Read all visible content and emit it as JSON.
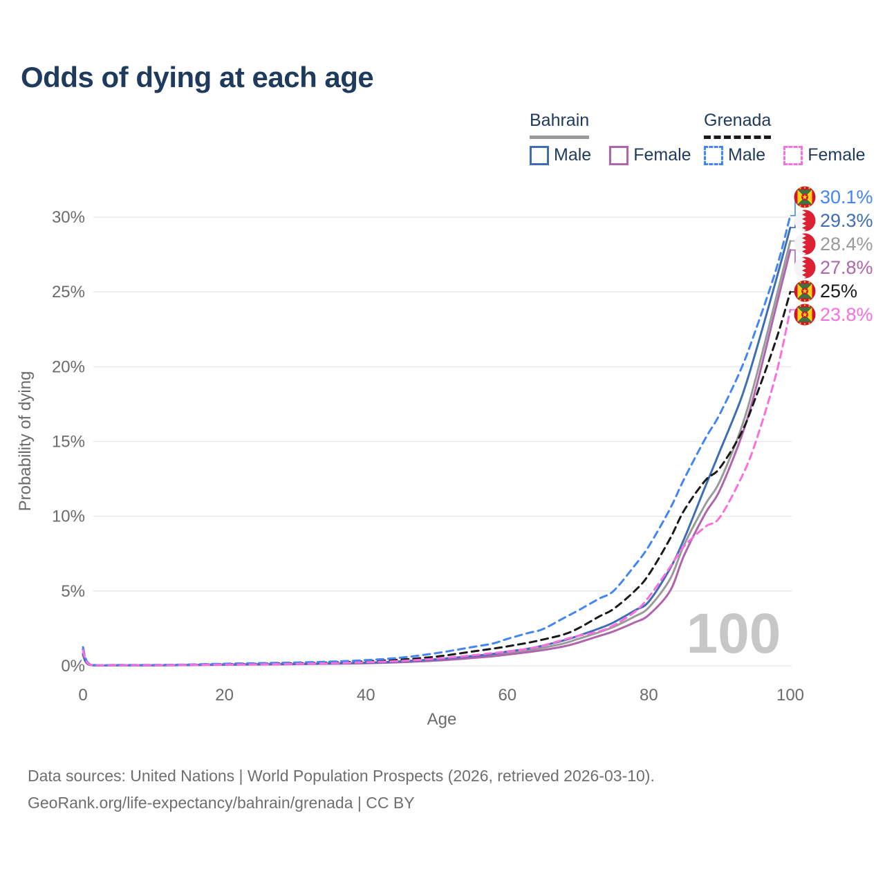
{
  "title": "Odds of dying at each age",
  "legend": {
    "groups": [
      {
        "country": "Bahrain",
        "line_style": "solid",
        "underline_color": "#9a9a9a",
        "items": [
          {
            "label": "Male",
            "color": "#3e6db5"
          },
          {
            "label": "Female",
            "color": "#af64ad"
          }
        ]
      },
      {
        "country": "Grenada",
        "line_style": "dashed",
        "underline_color": "#1a1a1a",
        "items": [
          {
            "label": "Male",
            "color": "#4285f4"
          },
          {
            "label": "Female",
            "color": "#fb6edd"
          }
        ]
      }
    ]
  },
  "chart_data": {
    "type": "line",
    "title": "Odds of dying at each age",
    "xlabel": "Age",
    "ylabel": "Probability of dying",
    "xlim": [
      0,
      100
    ],
    "ylim_pct": [
      0,
      31
    ],
    "grid": true,
    "legend_position": "top-right",
    "watermark": "100",
    "x_ticks": [
      0,
      20,
      40,
      60,
      80,
      100
    ],
    "y_ticks_pct": [
      0,
      5,
      10,
      15,
      20,
      25,
      30
    ],
    "y_tick_labels": [
      "0%",
      "5%",
      "10%",
      "15%",
      "20%",
      "25%",
      "30%"
    ],
    "ages": [
      0,
      1,
      5,
      10,
      15,
      20,
      25,
      30,
      35,
      40,
      45,
      50,
      55,
      58,
      60,
      63,
      65,
      68,
      70,
      73,
      75,
      78,
      80,
      83,
      85,
      88,
      90,
      93,
      95,
      98,
      100
    ],
    "series": [
      {
        "name": "Bahrain Combined",
        "country": "Bahrain",
        "group": "Combined",
        "color": "#9a9a9a",
        "dashed": false,
        "flag": "bahrain",
        "end_label": "28.4%",
        "end_value_pct": 28.4,
        "label_slot": 2,
        "values_pct": [
          0.75,
          0.055,
          0.035,
          0.035,
          0.055,
          0.08,
          0.1,
          0.12,
          0.15,
          0.19,
          0.27,
          0.4,
          0.58,
          0.72,
          0.85,
          1.03,
          1.2,
          1.5,
          1.8,
          2.25,
          2.6,
          3.3,
          3.9,
          5.8,
          8.1,
          10.8,
          12.3,
          15.8,
          19.0,
          24.6,
          28.4
        ]
      },
      {
        "name": "Bahrain Female",
        "country": "Bahrain",
        "group": "Female",
        "color": "#af64ad",
        "dashed": false,
        "flag": "bahrain",
        "end_label": "27.8%",
        "end_value_pct": 27.8,
        "label_slot": 3,
        "values_pct": [
          0.7,
          0.05,
          0.03,
          0.03,
          0.05,
          0.07,
          0.09,
          0.11,
          0.14,
          0.17,
          0.24,
          0.35,
          0.52,
          0.64,
          0.75,
          0.92,
          1.05,
          1.3,
          1.55,
          2.0,
          2.3,
          2.9,
          3.4,
          5.0,
          7.4,
          10.2,
          11.7,
          15.2,
          18.3,
          24.0,
          27.8
        ]
      },
      {
        "name": "Bahrain Male",
        "country": "Bahrain",
        "group": "Male",
        "color": "#3e6db5",
        "dashed": false,
        "flag": "bahrain",
        "end_label": "29.3%",
        "end_value_pct": 29.3,
        "label_slot": 1,
        "values_pct": [
          0.8,
          0.06,
          0.04,
          0.04,
          0.06,
          0.09,
          0.11,
          0.13,
          0.16,
          0.21,
          0.3,
          0.44,
          0.65,
          0.8,
          0.95,
          1.15,
          1.35,
          1.7,
          2.0,
          2.5,
          2.9,
          3.7,
          4.3,
          6.5,
          8.5,
          12.0,
          14.3,
          17.8,
          20.8,
          25.8,
          29.3
        ]
      },
      {
        "name": "Grenada Combined",
        "country": "Grenada",
        "group": "Combined",
        "color": "#1a1a1a",
        "dashed": true,
        "flag": "grenada",
        "end_label": "25%",
        "end_value_pct": 25.0,
        "label_slot": 4,
        "values_pct": [
          1.1,
          0.08,
          0.05,
          0.05,
          0.07,
          0.11,
          0.14,
          0.17,
          0.22,
          0.3,
          0.42,
          0.62,
          0.95,
          1.15,
          1.3,
          1.55,
          1.75,
          2.1,
          2.5,
          3.3,
          3.8,
          5.0,
          6.1,
          8.5,
          10.4,
          12.4,
          13.2,
          15.5,
          17.8,
          21.8,
          25.0
        ]
      },
      {
        "name": "Grenada Male",
        "country": "Grenada",
        "group": "Male",
        "color": "#4285f4",
        "dashed": true,
        "flag": "grenada",
        "end_label": "30.1%",
        "end_value_pct": 30.1,
        "label_slot": 0,
        "values_pct": [
          1.25,
          0.1,
          0.06,
          0.06,
          0.09,
          0.14,
          0.18,
          0.22,
          0.28,
          0.38,
          0.55,
          0.85,
          1.25,
          1.5,
          1.8,
          2.2,
          2.45,
          3.2,
          3.7,
          4.5,
          5.0,
          6.7,
          8.0,
          10.5,
          12.5,
          15.2,
          16.8,
          19.8,
          22.3,
          26.5,
          30.1
        ]
      },
      {
        "name": "Grenada Female",
        "country": "Grenada",
        "group": "Female",
        "color": "#fb6edd",
        "dashed": true,
        "flag": "grenada",
        "end_label": "23.8%",
        "end_value_pct": 23.8,
        "label_slot": 5,
        "values_pct": [
          1.05,
          0.07,
          0.04,
          0.04,
          0.06,
          0.08,
          0.1,
          0.13,
          0.17,
          0.24,
          0.33,
          0.48,
          0.7,
          0.85,
          0.95,
          1.15,
          1.35,
          1.75,
          2.0,
          2.3,
          2.7,
          3.6,
          4.6,
          6.6,
          8.0,
          9.3,
          9.9,
          12.5,
          14.8,
          19.5,
          23.8
        ]
      }
    ]
  },
  "footer": {
    "line1": "Data sources: United Nations | World Population Prospects (2026, retrieved 2026-03-10).",
    "line2": "GeoRank.org/life-expectancy/bahrain/grenada | CC BY"
  },
  "colors": {
    "title_text": "#1e3a5c",
    "axis_text": "#6b6b6b",
    "gridline": "#e7e7e7",
    "watermark": "#c7c7c7",
    "footer_text": "#6e6e6e"
  }
}
